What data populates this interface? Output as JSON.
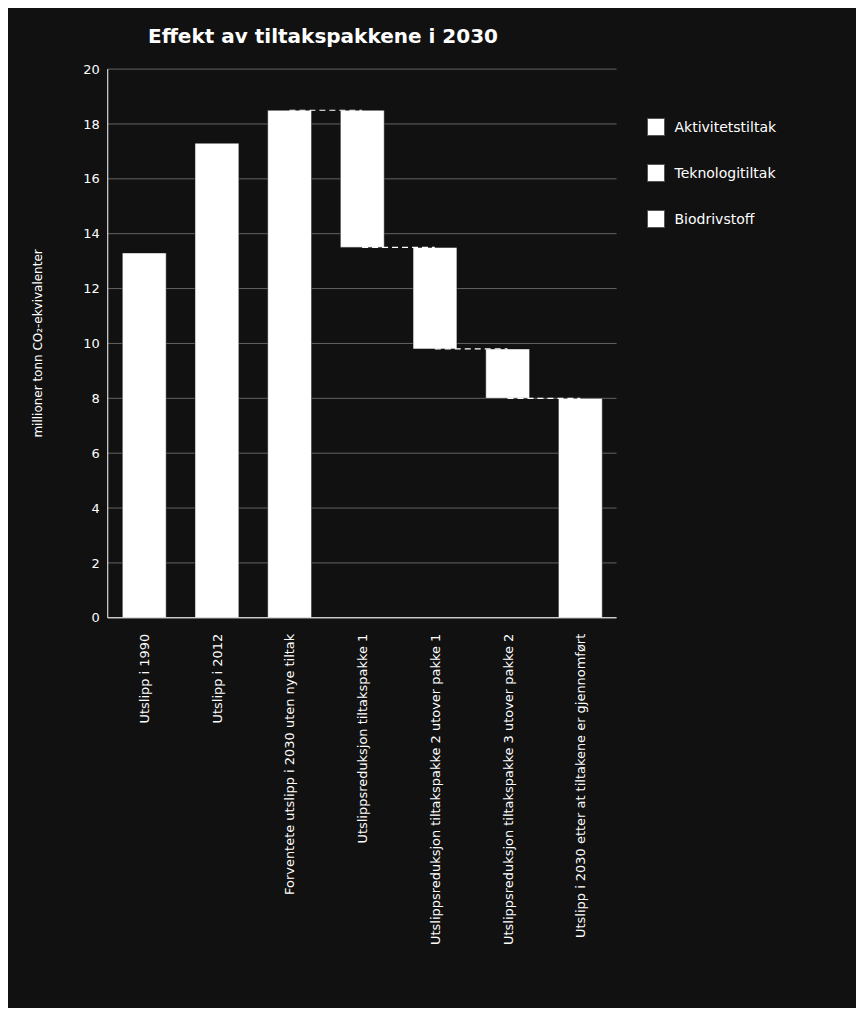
{
  "chart_data": {
    "type": "bar",
    "title": "Effekt av tiltakspakkene i 2030",
    "ylabel": "millioner tonn CO₂-ekvivalenter",
    "categories": [
      "Utslipp i 1990",
      "Utslipp i 2012",
      "Forventete utslipp i 2030 uten nye tiltak",
      "Utslippsreduksjon tiltakspakke 1",
      "Utslippsreduksjon tiltakspakke 2 utover pakke 1",
      "Utslippsreduksjon tiltakspakke 3 utover pakke 2",
      "Utslipp i 2030 etter at tiltakene er gjennomført"
    ],
    "values": [
      13.3,
      17.3,
      18.5,
      5.0,
      3.7,
      1.8,
      8.0
    ],
    "bottoms": [
      0,
      0,
      0,
      13.5,
      9.8,
      8.0,
      0
    ],
    "colors": [
      "#ffffff",
      "#ffffff",
      "#ffffff",
      "#ffffff",
      "#ffffff",
      "#ffffff",
      "#ffffff"
    ],
    "connectors": [
      {
        "y": 18.5,
        "from": "Forventete utslipp i 2030 uten nye tiltak",
        "to": "Utslippsreduksjon tiltakspakke 1"
      },
      {
        "y": 13.5,
        "from": "Utslippsreduksjon tiltakspakke 1",
        "to": "Utslippsreduksjon tiltakspakke 2 utover pakke 1"
      },
      {
        "y": 9.8,
        "from": "Utslippsreduksjon tiltakspakke 2 utover pakke 1",
        "to": "Utslippsreduksjon tiltakspakke 3 utover pakke 2"
      },
      {
        "y": 8.0,
        "from": "Utslippsreduksjon tiltakspakke 3 utover pakke 2",
        "to": "Utslipp i 2030 etter at tiltakene er gjennomført"
      }
    ],
    "legend": "right",
    "legend_entries": [
      {
        "label": "Aktivitetstiltak",
        "color": "#ffffff"
      },
      {
        "label": "Teknologitiltak",
        "color": "#ffffff"
      },
      {
        "label": "Biodrivstoff",
        "color": "#ffffff"
      }
    ],
    "ylim": [
      0,
      20
    ],
    "yticks": [
      0,
      2,
      4,
      6,
      8,
      10,
      12,
      14,
      16,
      18,
      20
    ],
    "grid": true
  }
}
